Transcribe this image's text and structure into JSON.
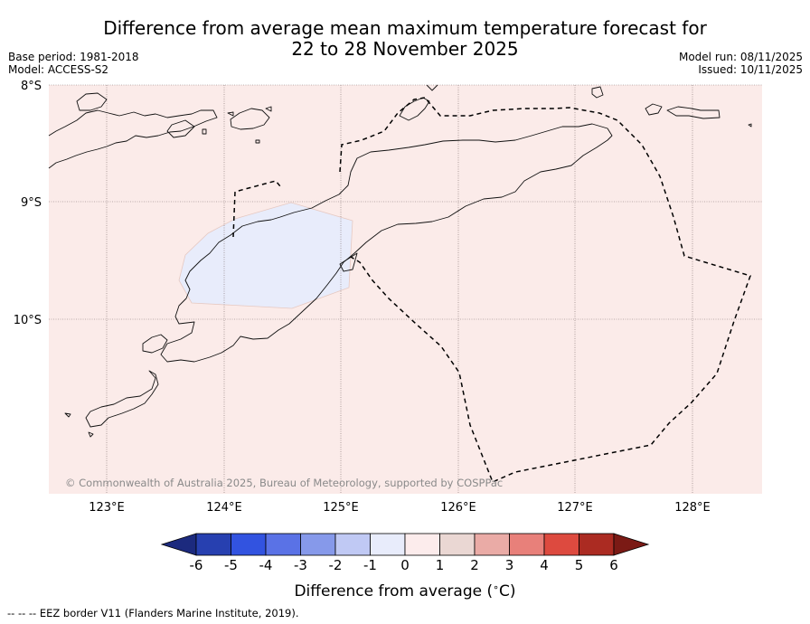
{
  "title": {
    "line1": "Difference from average mean maximum temperature forecast for",
    "line2": "22 to 28 November 2025"
  },
  "meta_left": {
    "base_period": "Base period: 1981-2018",
    "model": "Model: ACCESS-S2"
  },
  "meta_right": {
    "model_run": "Model run: 08/11/2025",
    "issued": "Issued: 10/11/2025"
  },
  "map": {
    "lat_labels": [
      "8°S",
      "9°S",
      "10°S"
    ],
    "lon_labels": [
      "123°E",
      "124°E",
      "125°E",
      "126°E",
      "127°E",
      "128°E"
    ],
    "copyright": "© Commonwealth of Australia 2025, Bureau of Meteorology, supported by COSPPac",
    "background_color": "#fbebe9",
    "anomaly_patch_color": "#e8ecfb",
    "anomaly_patch_value": "0 to -1"
  },
  "legend": {
    "title": "Difference from average (°C)",
    "title_prefix": "Difference from average (",
    "title_unit": "∘",
    "title_suffix": "C)",
    "ticks": [
      "-6",
      "-5",
      "-4",
      "-3",
      "-2",
      "-1",
      "0",
      "1",
      "2",
      "3",
      "4",
      "5",
      "6"
    ],
    "colors": [
      "#1c2a7e",
      "#2740b0",
      "#3253e0",
      "#5a72e6",
      "#8699ea",
      "#c0c9f4",
      "#e8ecfb",
      "#fcecec",
      "#ead7d3",
      "#eaaba6",
      "#e8807a",
      "#dd4a3f",
      "#ab2b22",
      "#7b1a15"
    ]
  },
  "footer": {
    "eez": "--  --  -- EEZ border V11 (Flanders Marine Institute, 2019)."
  }
}
